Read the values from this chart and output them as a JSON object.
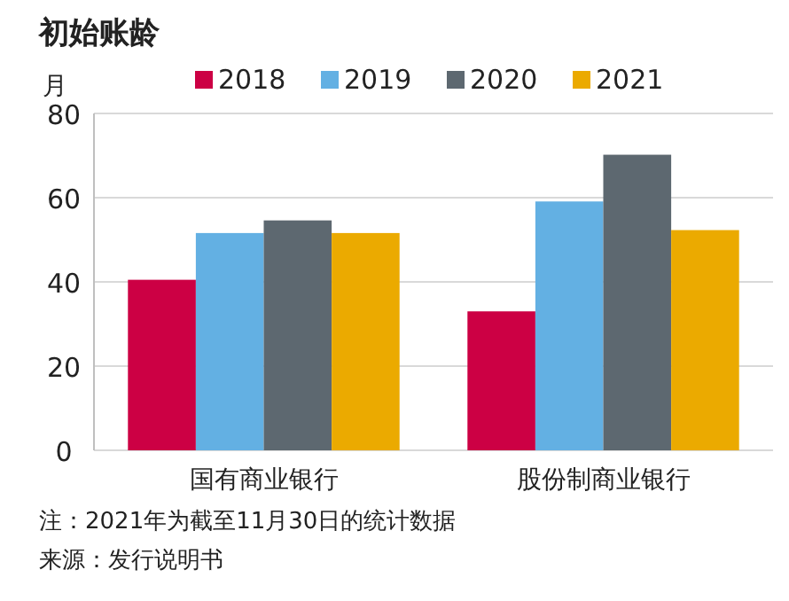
{
  "chart_data": {
    "type": "bar",
    "title": "初始账龄",
    "ylabel": "月",
    "categories": [
      "国有商业银行",
      "股份制商业银行"
    ],
    "series": [
      {
        "name": "2018",
        "color": "#cc0044",
        "values": [
          40.5,
          33
        ]
      },
      {
        "name": "2019",
        "color": "#63b0e3",
        "values": [
          51.6,
          59.1
        ]
      },
      {
        "name": "2020",
        "color": "#5d6870",
        "values": [
          54.6,
          70.2
        ]
      },
      {
        "name": "2021",
        "color": "#ebaa00",
        "values": [
          51.6,
          52.3
        ]
      }
    ],
    "ylim": [
      0,
      80
    ],
    "yticks": [
      0,
      20,
      40,
      60,
      80
    ],
    "grid": "y",
    "legend": "top",
    "annotations": [
      "注：2021年为截至11月30日的统计数据",
      "来源：发行说明书"
    ]
  }
}
